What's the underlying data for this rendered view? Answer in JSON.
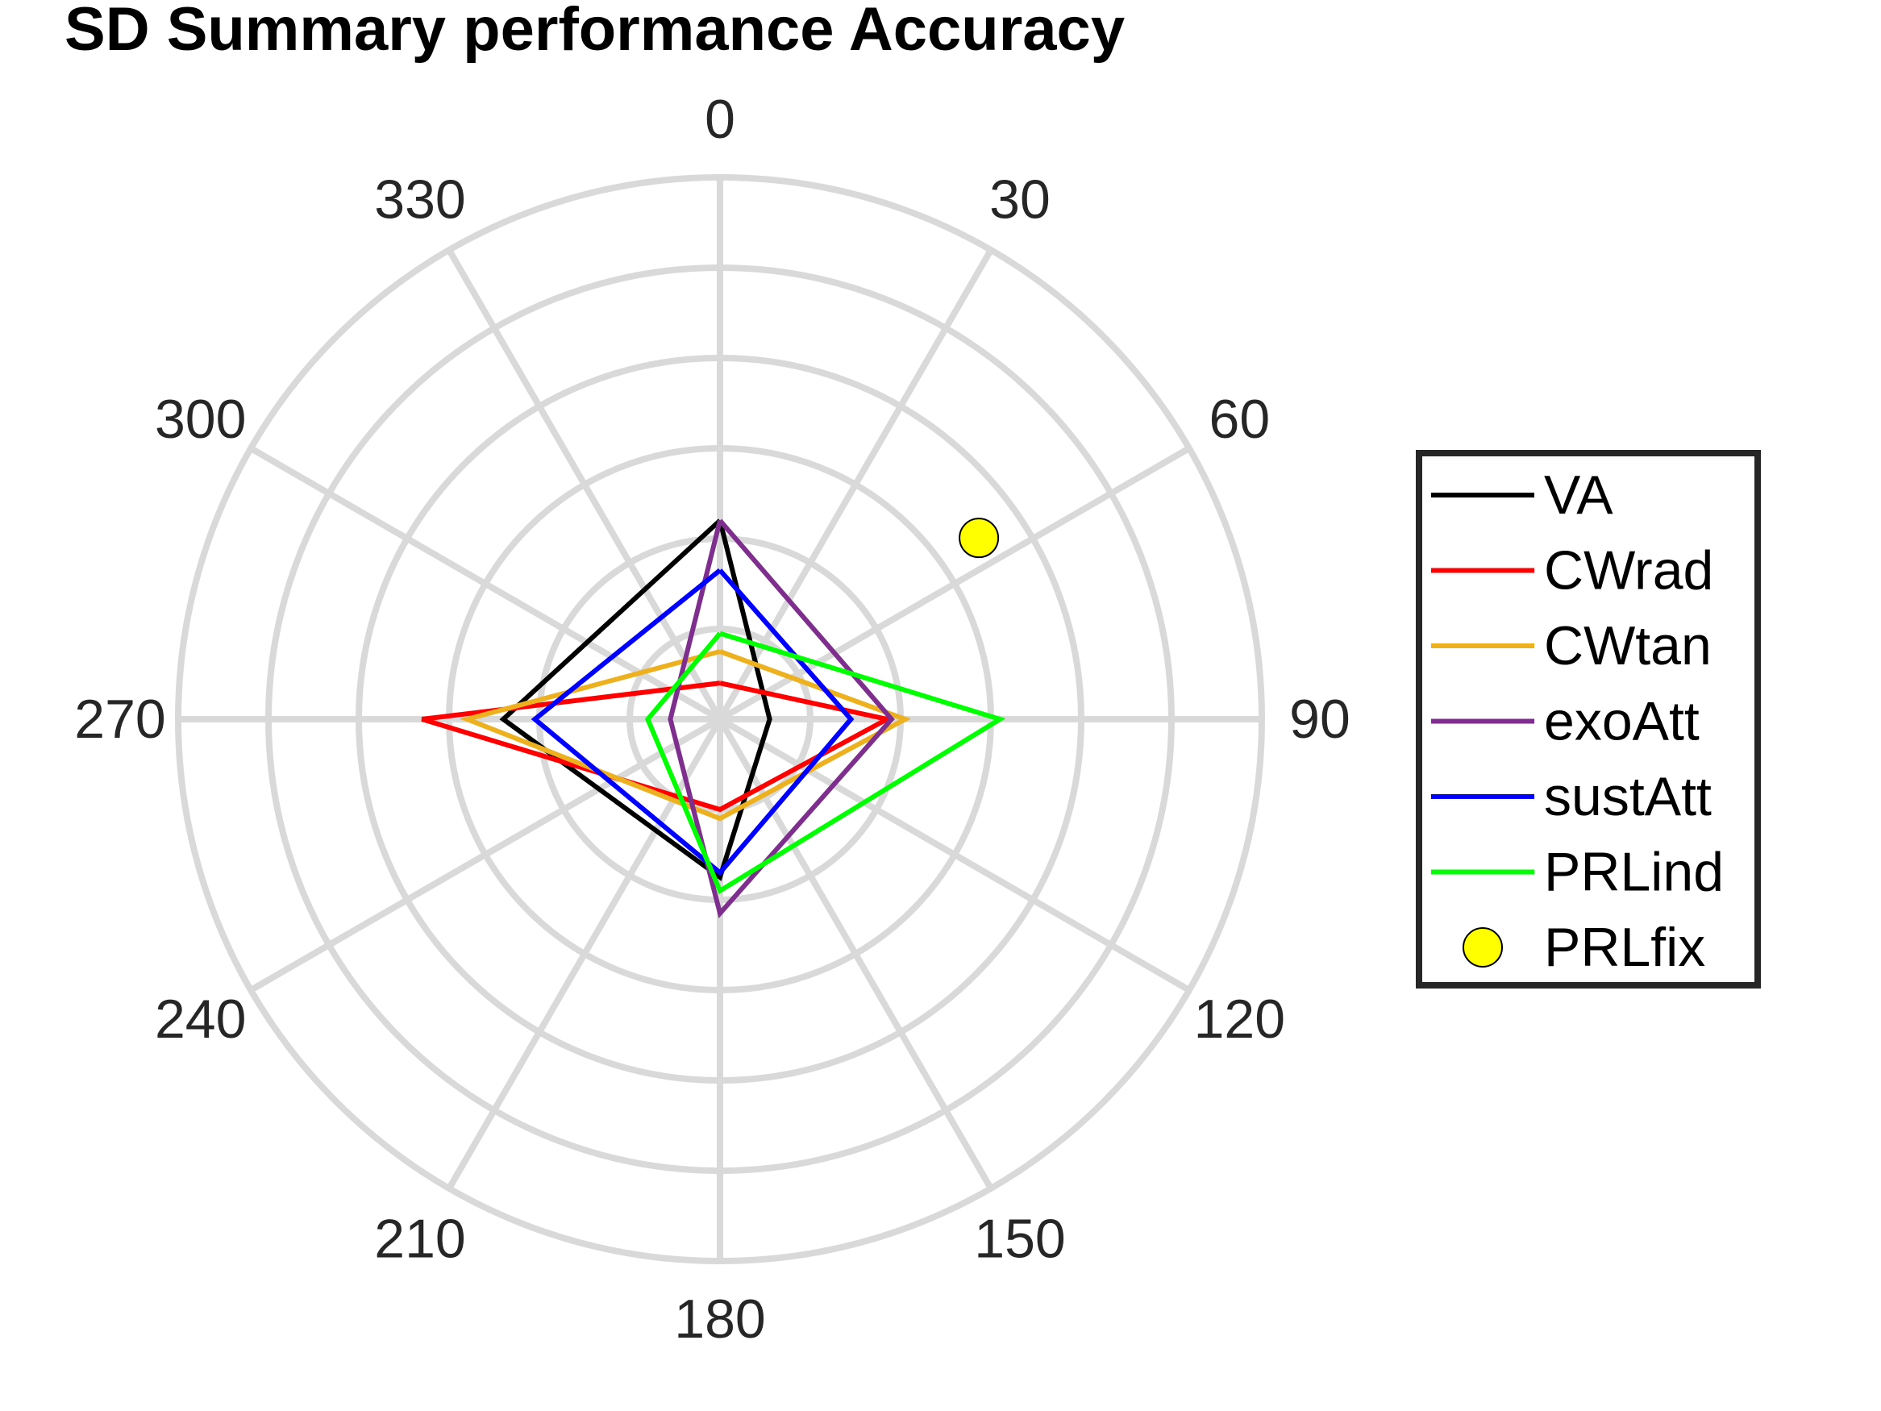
{
  "chart_data": {
    "type": "polar-line",
    "title": "SD Summary performance Accuracy",
    "theta_direction": "clockwise",
    "theta_zero_location": "top",
    "theta_ticks": [
      "0",
      "30",
      "60",
      "90",
      "120",
      "150",
      "180",
      "210",
      "240",
      "270",
      "300",
      "330"
    ],
    "theta_tick_angles": [
      0,
      30,
      60,
      90,
      120,
      150,
      180,
      210,
      240,
      270,
      300,
      330
    ],
    "r_lim": [
      0,
      6
    ],
    "r_rings": [
      1,
      2,
      3,
      4,
      5,
      6
    ],
    "grid": true,
    "legend_position": "right",
    "series": [
      {
        "name": "VA",
        "color": "#000000",
        "style": "line",
        "theta": [
          0,
          90,
          180,
          270,
          0
        ],
        "r": [
          2.2,
          0.55,
          1.75,
          2.4,
          2.2
        ]
      },
      {
        "name": "CWrad",
        "color": "#ff0000",
        "style": "line",
        "theta": [
          0,
          90,
          180,
          270,
          0
        ],
        "r": [
          0.4,
          1.85,
          1.0,
          3.3,
          0.4
        ]
      },
      {
        "name": "CWtan",
        "color": "#edb120",
        "style": "line",
        "theta": [
          0,
          90,
          180,
          270,
          0
        ],
        "r": [
          0.75,
          2.05,
          1.1,
          2.8,
          0.75
        ]
      },
      {
        "name": "exoAtt",
        "color": "#7e2f8e",
        "style": "line",
        "theta": [
          0,
          90,
          180,
          270,
          0
        ],
        "r": [
          2.2,
          1.9,
          2.15,
          0.55,
          2.2
        ]
      },
      {
        "name": "sustAtt",
        "color": "#0000ff",
        "style": "line",
        "theta": [
          0,
          90,
          180,
          270,
          0
        ],
        "r": [
          1.65,
          1.45,
          1.7,
          2.05,
          1.65
        ]
      },
      {
        "name": "PRLind",
        "color": "#00ff00",
        "style": "line",
        "theta": [
          0,
          90,
          180,
          270,
          0
        ],
        "r": [
          0.95,
          3.1,
          1.9,
          0.8,
          0.95
        ]
      },
      {
        "name": "PRLfix",
        "color": "#ffff00",
        "edge_color": "#000000",
        "style": "marker",
        "theta": [
          55
        ],
        "r": [
          3.5
        ]
      }
    ]
  }
}
